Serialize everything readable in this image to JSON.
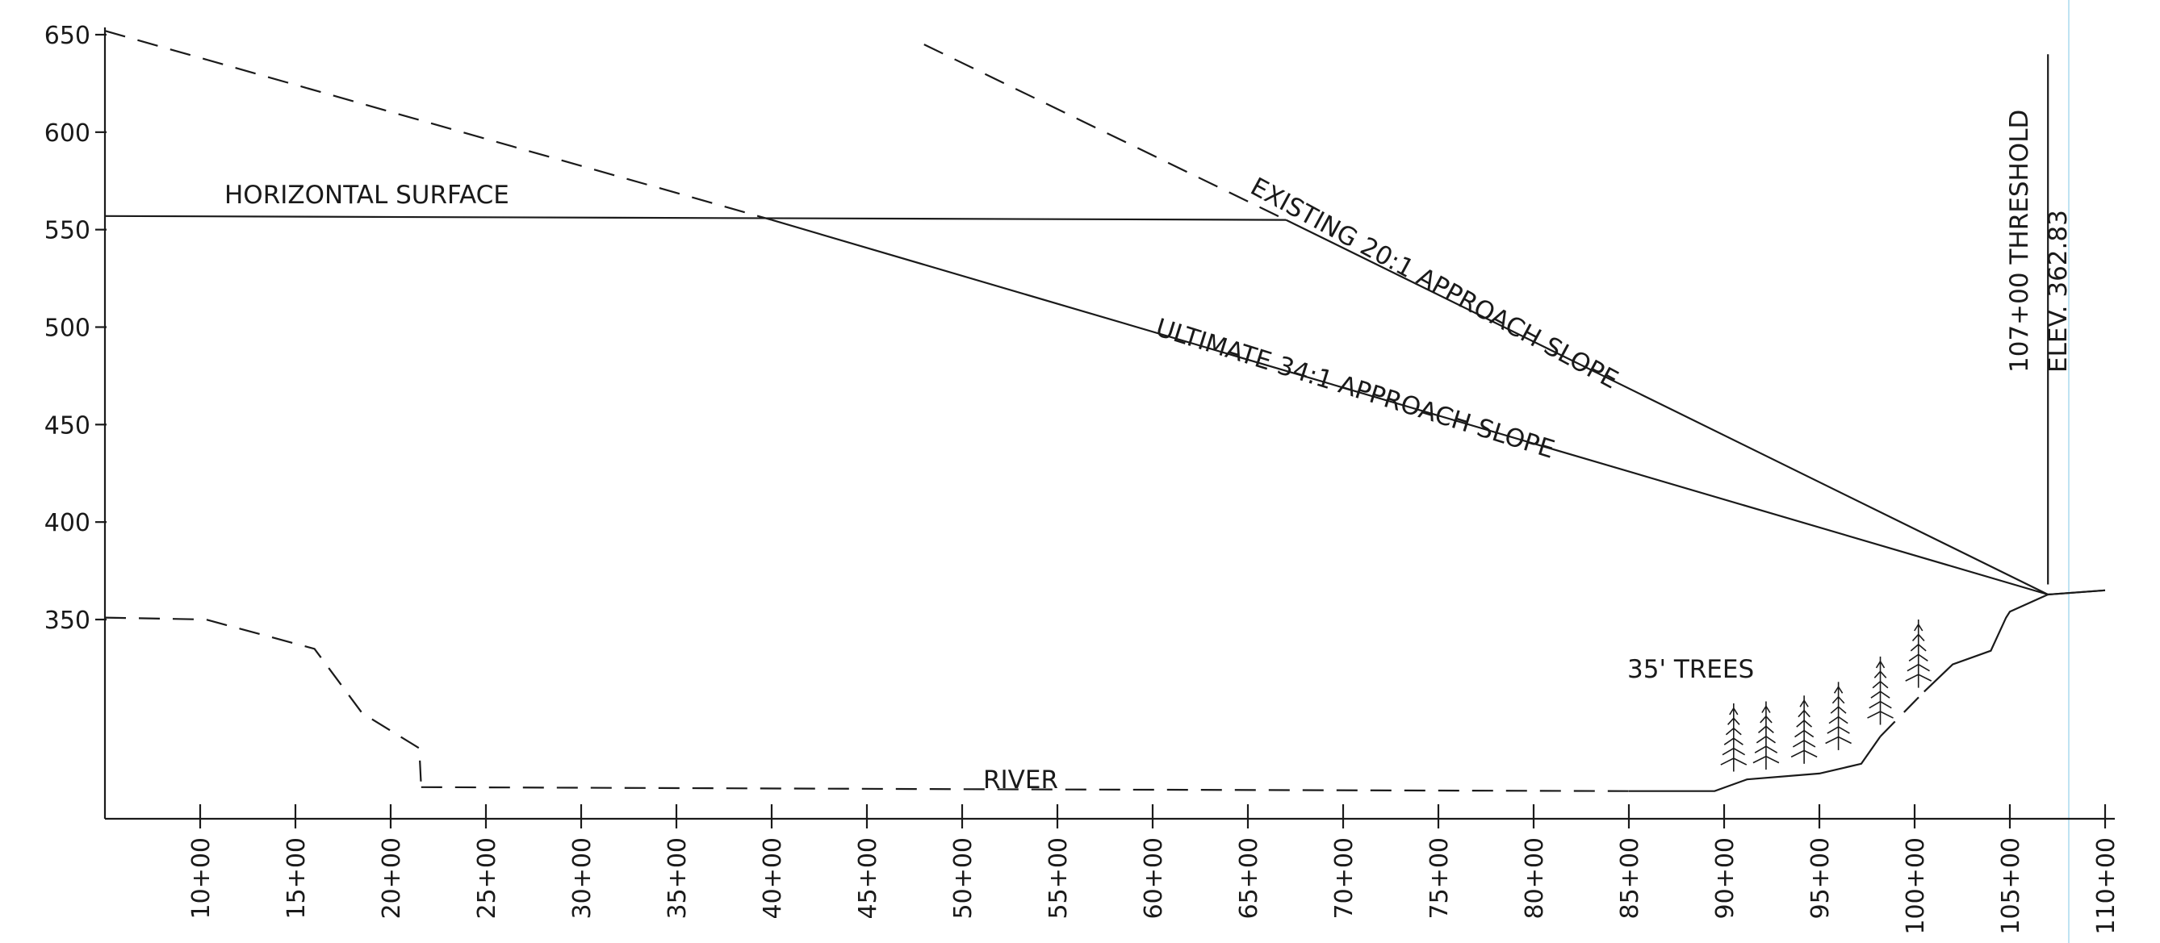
{
  "chart_data": {
    "type": "line",
    "title": "",
    "xlabel": "",
    "ylabel": "",
    "ylim": [
      250,
      655
    ],
    "y_ticks": [
      {
        "value": 650,
        "label": "650"
      },
      {
        "value": 600,
        "label": "600"
      },
      {
        "value": 550,
        "label": "550"
      },
      {
        "value": 500,
        "label": "500"
      },
      {
        "value": 450,
        "label": "450"
      },
      {
        "value": 400,
        "label": "400"
      },
      {
        "value": 350,
        "label": "350"
      }
    ],
    "xlim": [
      500,
      11000
    ],
    "x_ticks": [
      {
        "value": 1000,
        "label": "10+00"
      },
      {
        "value": 1500,
        "label": "15+00"
      },
      {
        "value": 2000,
        "label": "20+00"
      },
      {
        "value": 2500,
        "label": "25+00"
      },
      {
        "value": 3000,
        "label": "30+00"
      },
      {
        "value": 3500,
        "label": "35+00"
      },
      {
        "value": 4000,
        "label": "40+00"
      },
      {
        "value": 4500,
        "label": "45+00"
      },
      {
        "value": 5000,
        "label": "50+00"
      },
      {
        "value": 5500,
        "label": "55+00"
      },
      {
        "value": 6000,
        "label": "60+00"
      },
      {
        "value": 6500,
        "label": "65+00"
      },
      {
        "value": 7000,
        "label": "70+00"
      },
      {
        "value": 7500,
        "label": "75+00"
      },
      {
        "value": 8000,
        "label": "80+00"
      },
      {
        "value": 8500,
        "label": "85+00"
      },
      {
        "value": 9000,
        "label": "90+00"
      },
      {
        "value": 9500,
        "label": "95+00"
      },
      {
        "value": 10000,
        "label": "100+00"
      },
      {
        "value": 10500,
        "label": "105+00"
      },
      {
        "value": 11000,
        "label": "110+00"
      }
    ],
    "series": [
      {
        "style": "solid",
        "x": [
          500,
          6700
        ],
        "y": [
          557,
          555
        ]
      },
      {
        "style": "dashed",
        "x": [
          500,
          4000
        ],
        "y": [
          652,
          555
        ]
      },
      {
        "style": "solid",
        "x": [
          4000,
          10700
        ],
        "y": [
          555,
          362.83
        ]
      },
      {
        "style": "dashed",
        "x": [
          4800,
          6700
        ],
        "y": [
          645,
          555
        ]
      },
      {
        "style": "solid",
        "x": [
          6700,
          10700
        ],
        "y": [
          555,
          362.83
        ]
      },
      {
        "style": "solid",
        "x": [
          10700,
          11000
        ],
        "y": [
          362.83,
          365
        ]
      },
      {
        "style": "solid",
        "x": [
          10700,
          10700
        ],
        "y": [
          368,
          640
        ]
      },
      {
        "style": "dashed",
        "x": [
          500,
          1030,
          1600,
          1850,
          2150,
          2150,
          2160
        ],
        "y": [
          351,
          350,
          335,
          302,
          284,
          284,
          264
        ]
      },
      {
        "style": "dashed",
        "x": [
          2160,
          5000,
          8500
        ],
        "y": [
          264,
          263,
          262
        ]
      },
      {
        "style": "solid",
        "x": [
          8500,
          8950,
          9120,
          9500,
          9720,
          9820
        ],
        "y": [
          262,
          262,
          268,
          271,
          276,
          290
        ]
      },
      {
        "style": "dashed",
        "x": [
          9820,
          10050
        ],
        "y": [
          290,
          313
        ]
      },
      {
        "style": "solid",
        "x": [
          10050,
          10200,
          10400,
          10480,
          10500,
          10700
        ],
        "y": [
          313,
          327,
          334,
          351,
          354,
          362.83
        ]
      },
      {
        "style": "solid",
        "x": [
          10700,
          11000
        ],
        "y": [
          362.83,
          365
        ]
      }
    ],
    "trees": [
      {
        "x": 9050,
        "base": 272
      },
      {
        "x": 9220,
        "base": 273
      },
      {
        "x": 9420,
        "base": 276
      },
      {
        "x": 9600,
        "base": 283
      },
      {
        "x": 9820,
        "base": 296
      },
      {
        "x": 10020,
        "base": 315
      }
    ],
    "threshold_marker": {
      "x": 10700,
      "y": 362.83
    },
    "annotations": {
      "horizontal": "HORIZONTAL SURFACE",
      "existing": "EXISTING 20:1 APPROACH SLOPE",
      "ultimate": "ULTIMATE 34:1 APPROACH SLOPE",
      "threshold_station": "107+00  THRESHOLD",
      "threshold_elev": "ELEV. 362.83",
      "trees": "35' TREES",
      "river": "RIVER"
    }
  }
}
